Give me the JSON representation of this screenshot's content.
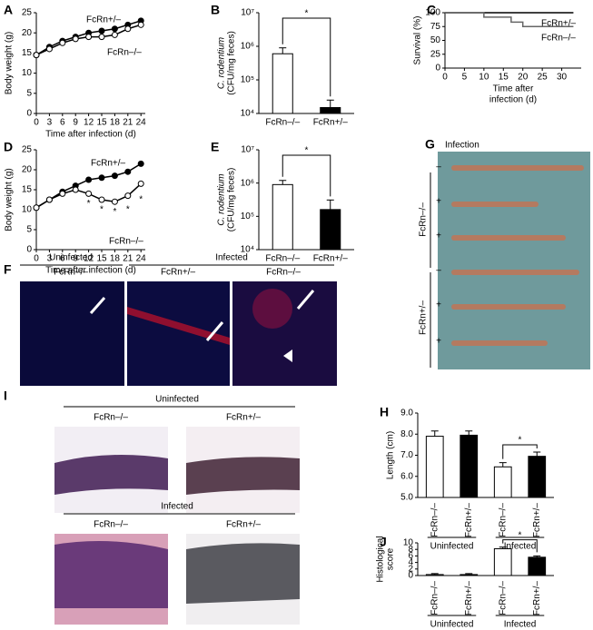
{
  "chart_data": [
    {
      "type": "line",
      "panel": "A",
      "xlabel": "Time after infection (d)",
      "ylabel": "Body weight (g)",
      "x": [
        0,
        3,
        6,
        9,
        12,
        15,
        18,
        21,
        24
      ],
      "xlim": [
        0,
        25
      ],
      "xticks": [
        0,
        3,
        6,
        9,
        12,
        15,
        18,
        21,
        24
      ],
      "ylim": [
        0,
        25
      ],
      "yticks": [
        0,
        5,
        10,
        15,
        20,
        25
      ],
      "series": [
        {
          "name": "FcRn+/–",
          "color": "#000000",
          "marker": "filled",
          "values": [
            14.5,
            16.5,
            18,
            19,
            20,
            20.5,
            21,
            22,
            23
          ]
        },
        {
          "name": "FcRn–/–",
          "color": "#000000",
          "marker": "open",
          "values": [
            14.5,
            16,
            17.5,
            18.5,
            19,
            19,
            19.5,
            21,
            22
          ]
        }
      ]
    },
    {
      "type": "bar",
      "panel": "B",
      "ylabel": [
        "C. rodentium",
        "(CFU/mg feces)"
      ],
      "log_scale": true,
      "categories": [
        "FcRn–/–",
        "FcRn+/–"
      ],
      "values": [
        600000,
        15000
      ],
      "errors": [
        300000,
        10000
      ],
      "colors": [
        "#ffffff",
        "#000000"
      ],
      "significance": "*",
      "ylim": [
        10000,
        10000000
      ],
      "yticks": [
        {
          "value": 10000,
          "label": "10⁴"
        },
        {
          "value": 100000,
          "label": "10⁵"
        },
        {
          "value": 1000000,
          "label": "10⁶"
        },
        {
          "value": 10000000,
          "label": "10⁷"
        }
      ]
    },
    {
      "type": "line",
      "panel": "C",
      "xlabel": [
        "Time after",
        "infection (d)"
      ],
      "ylabel": "Survival (%)",
      "xlim": [
        0,
        35
      ],
      "xticks": [
        0,
        5,
        10,
        15,
        20,
        25,
        30
      ],
      "ylim": [
        0,
        100
      ],
      "yticks": [
        0,
        25,
        50,
        75,
        100
      ],
      "series": [
        {
          "name": "FcRn+/–",
          "color": "#000000",
          "marker": "none",
          "x": [
            0,
            33
          ],
          "values": [
            100,
            100
          ]
        },
        {
          "name": "FcRn–/–",
          "color": "#666666",
          "marker": "none",
          "x": [
            0,
            10,
            10,
            17,
            17,
            20,
            20,
            33
          ],
          "values": [
            100,
            100,
            92,
            92,
            83,
            83,
            75,
            75
          ]
        }
      ]
    },
    {
      "type": "line",
      "panel": "D",
      "xlabel": "Time after infection (d)",
      "ylabel": "Body weight (g)",
      "x": [
        0,
        3,
        6,
        9,
        12,
        15,
        18,
        21,
        24
      ],
      "xlim": [
        0,
        25
      ],
      "xticks": [
        0,
        3,
        6,
        9,
        12,
        15,
        18,
        21,
        24
      ],
      "ylim": [
        0,
        25
      ],
      "yticks": [
        0,
        5,
        10,
        15,
        20,
        25
      ],
      "series": [
        {
          "name": "FcRn+/–",
          "color": "#000000",
          "marker": "filled",
          "values": [
            10.5,
            12.5,
            14.5,
            16,
            17.5,
            18,
            18.5,
            19.5,
            21.5
          ]
        },
        {
          "name": "FcRn–/–",
          "color": "#000000",
          "marker": "open",
          "values": [
            10.5,
            12.5,
            14,
            15,
            14,
            12.5,
            12,
            13.5,
            16.5
          ]
        }
      ],
      "annotations": [
        {
          "text": "*",
          "x": 12,
          "y": 11.5
        },
        {
          "text": "*",
          "x": 15,
          "y": 10
        },
        {
          "text": "*",
          "x": 18,
          "y": 9.5
        },
        {
          "text": "*",
          "x": 21,
          "y": 10
        },
        {
          "text": "*",
          "x": 24,
          "y": 12.5
        }
      ]
    },
    {
      "type": "bar",
      "panel": "E",
      "ylabel": [
        "C. rodentium",
        "(CFU/mg feces)"
      ],
      "log_scale": true,
      "categories": [
        "FcRn–/–",
        "FcRn+/–"
      ],
      "values": [
        900000,
        160000
      ],
      "errors": [
        300000,
        150000
      ],
      "colors": [
        "#ffffff",
        "#000000"
      ],
      "significance": "*",
      "ylim": [
        10000,
        10000000
      ],
      "yticks": [
        {
          "value": 10000,
          "label": "10⁴"
        },
        {
          "value": 100000,
          "label": "10⁵"
        },
        {
          "value": 1000000,
          "label": "10⁶"
        },
        {
          "value": 10000000,
          "label": "10⁷"
        }
      ]
    },
    {
      "type": "bar",
      "panel": "H",
      "ylabel": "Length (cm)",
      "categories": [
        "FcRn–/–",
        "FcRn+/–",
        "FcRn–/–",
        "FcRn+/–"
      ],
      "groups": [
        "Uninfected",
        "Infected"
      ],
      "values": [
        7.9,
        7.95,
        6.45,
        6.95
      ],
      "errors": [
        0.25,
        0.2,
        0.2,
        0.2
      ],
      "colors": [
        "#ffffff",
        "#000000",
        "#ffffff",
        "#000000"
      ],
      "significance": "*",
      "ylim": [
        5,
        9
      ],
      "yticks": [
        {
          "value": 5,
          "label": "5.0"
        },
        {
          "value": 6,
          "label": "6.0"
        },
        {
          "value": 7,
          "label": "7.0"
        },
        {
          "value": 8,
          "label": "8.0"
        },
        {
          "value": 9,
          "label": "9.0"
        }
      ]
    },
    {
      "type": "bar",
      "panel": "J",
      "ylabel": [
        "Histological",
        "score"
      ],
      "categories": [
        "FcRn–/–",
        "FcRn+/–",
        "FcRn–/–",
        "FcRn+/–"
      ],
      "groups": [
        "Uninfected",
        "Infected"
      ],
      "values": [
        0.3,
        0.3,
        8.2,
        5.6
      ],
      "errors": [
        0.3,
        0.3,
        0.5,
        0.4
      ],
      "colors": [
        "#ffffff",
        "#000000",
        "#ffffff",
        "#000000"
      ],
      "significance": "*",
      "ylim": [
        0,
        10
      ],
      "yticks": [
        0,
        2,
        4,
        6,
        8,
        10
      ]
    }
  ],
  "figure_F": {
    "letter": "F",
    "groups": [
      "Uninfected",
      "Infected"
    ],
    "image_labels": [
      "FcRn–/–",
      "FcRn+/–",
      "FcRn–/–"
    ]
  },
  "figure_G": {
    "letter": "G",
    "title": "Infection",
    "genotypes": [
      "FcRn–/–",
      "FcRn+/–"
    ],
    "signs": [
      "–",
      "+",
      "+",
      "–",
      "+",
      "+"
    ]
  },
  "figure_I": {
    "letter": "I",
    "groups": [
      "Uninfected",
      "Infected"
    ],
    "image_labels": [
      "FcRn–/–",
      "FcRn+/–",
      "FcRn–/–",
      "FcRn+/–"
    ]
  }
}
